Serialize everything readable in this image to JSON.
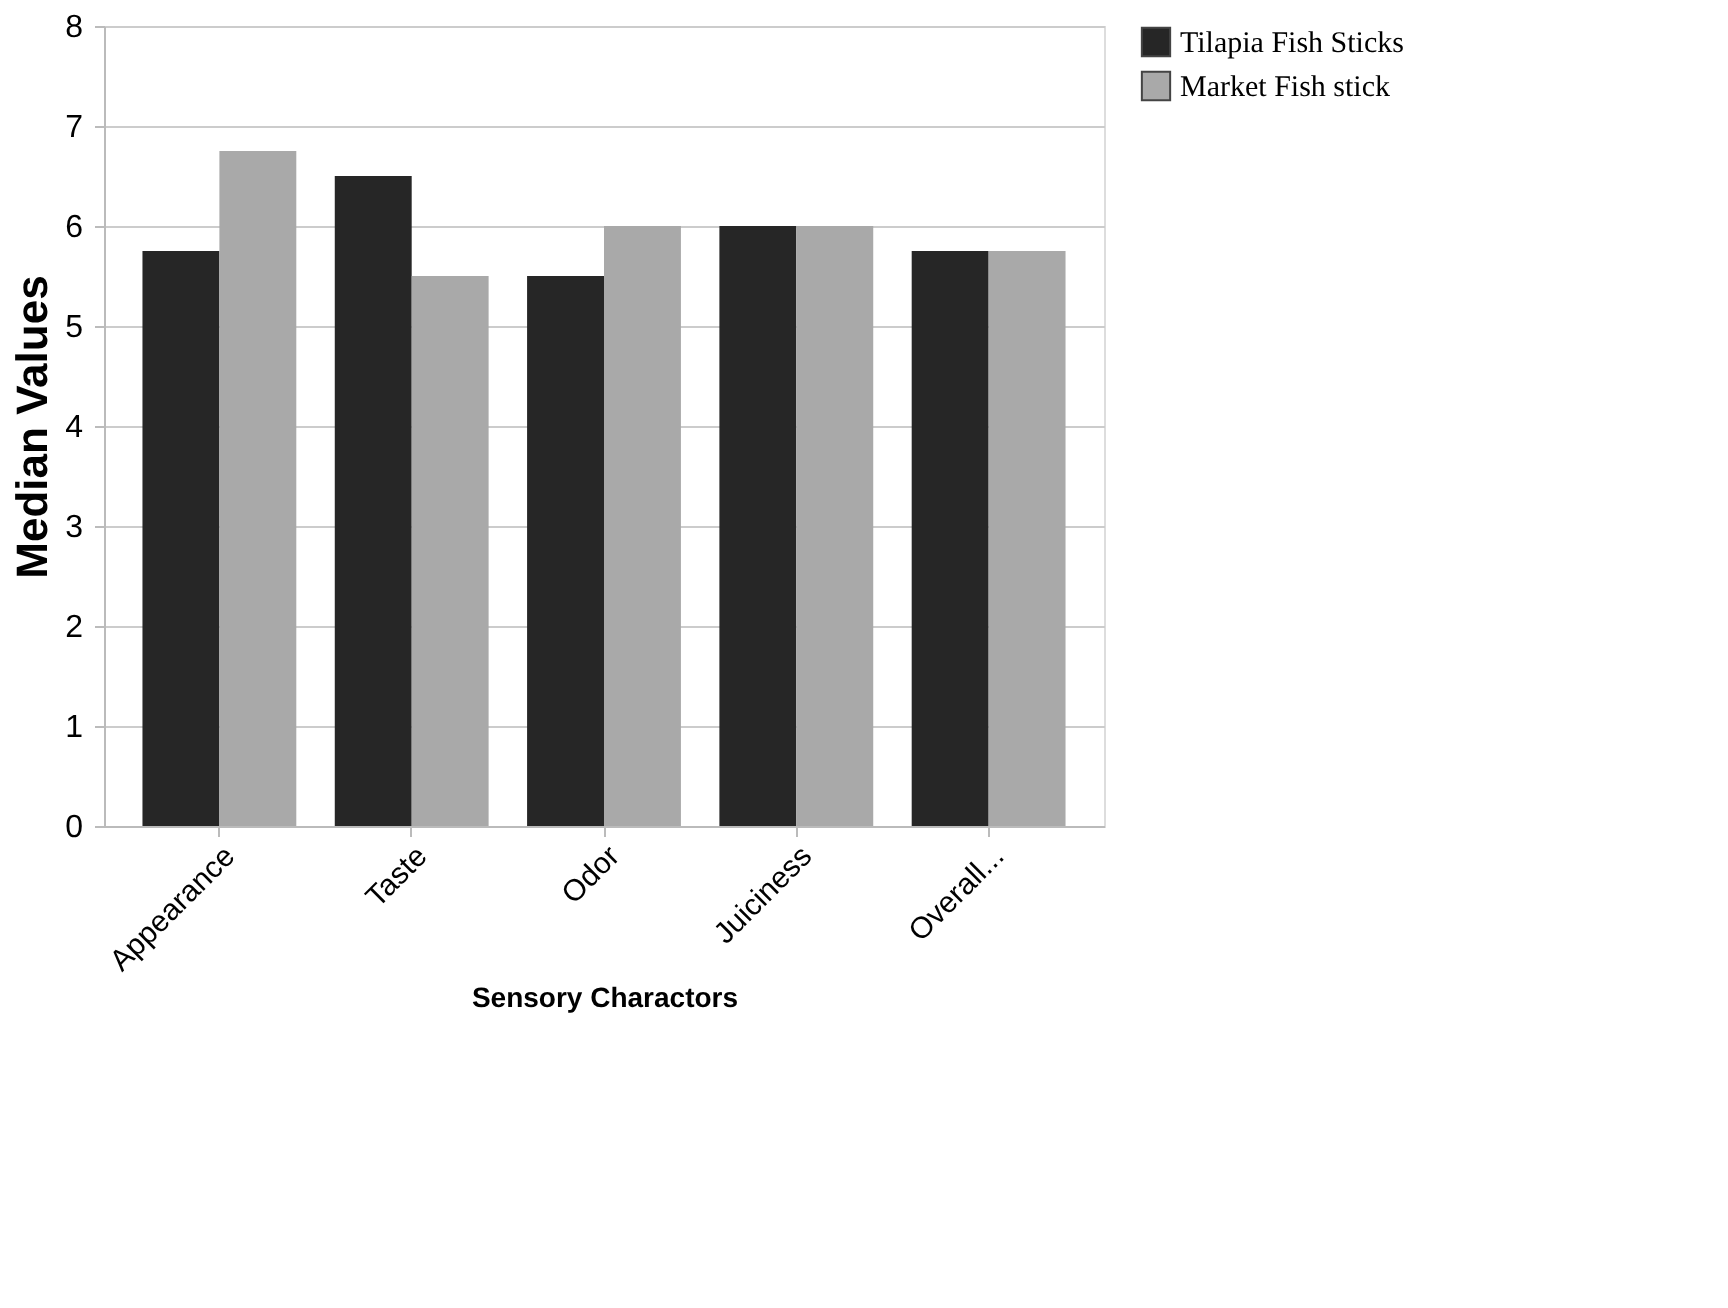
{
  "chart_data": {
    "type": "bar",
    "xlabel": "Sensory Charactors",
    "ylabel": "Median Values",
    "categories": [
      "Appearance",
      "Taste",
      "Odor",
      "Juiciness",
      "Overall..."
    ],
    "series": [
      {
        "name": "Tilapia Fish Sticks",
        "color": "#262626",
        "values": [
          5.75,
          6.5,
          5.5,
          6,
          5.75
        ]
      },
      {
        "name": "Market Fish stick",
        "color": "#a9a9a9",
        "values": [
          6.75,
          5.5,
          6,
          6,
          5.75
        ]
      }
    ],
    "ylim": [
      0,
      8
    ],
    "yticks": [
      0,
      1,
      2,
      3,
      4,
      5,
      6,
      7,
      8
    ],
    "grid": "y",
    "legend": "right"
  }
}
